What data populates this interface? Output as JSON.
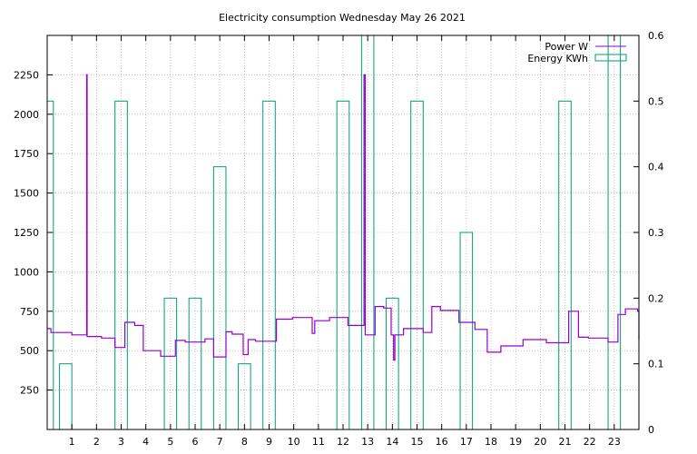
{
  "chart_data": {
    "type": "line",
    "title": "Electricity consumption Wednesday May 26 2021",
    "legend_position": "top-right",
    "grid": true,
    "x_ticks": [
      "1",
      "2",
      "3",
      "4",
      "5",
      "6",
      "7",
      "8",
      "9",
      "10",
      "11",
      "12",
      "13",
      "14",
      "15",
      "16",
      "17",
      "18",
      "19",
      "20",
      "21",
      "22",
      "23"
    ],
    "xlim": [
      0,
      24
    ],
    "y_left": {
      "lim": [
        0,
        2500
      ],
      "ticks": [
        "250",
        "500",
        "750",
        "1000",
        "1250",
        "1500",
        "1750",
        "2000",
        "2250"
      ]
    },
    "y_right": {
      "lim": [
        0,
        0.6
      ],
      "ticks": [
        "0",
        "0.1",
        "0.2",
        "0.3",
        "0.4",
        "0.5",
        "0.6"
      ]
    },
    "series": [
      {
        "name": "Power W",
        "kind": "step-line",
        "axis": "left",
        "color": "#9400d3",
        "points": [
          [
            0.0,
            640
          ],
          [
            0.15,
            615
          ],
          [
            1.0,
            600
          ],
          [
            1.55,
            600
          ],
          [
            1.6,
            2250
          ],
          [
            1.62,
            590
          ],
          [
            2.2,
            580
          ],
          [
            2.75,
            520
          ],
          [
            3.15,
            680
          ],
          [
            3.55,
            660
          ],
          [
            3.9,
            500
          ],
          [
            4.4,
            500
          ],
          [
            4.6,
            465
          ],
          [
            5.2,
            565
          ],
          [
            5.6,
            555
          ],
          [
            6.4,
            575
          ],
          [
            6.75,
            460
          ],
          [
            7.25,
            620
          ],
          [
            7.5,
            605
          ],
          [
            7.95,
            475
          ],
          [
            8.15,
            570
          ],
          [
            8.45,
            560
          ],
          [
            9.3,
            700
          ],
          [
            9.95,
            710
          ],
          [
            10.75,
            610
          ],
          [
            10.85,
            690
          ],
          [
            11.45,
            710
          ],
          [
            12.2,
            660
          ],
          [
            12.85,
            2250
          ],
          [
            12.9,
            600
          ],
          [
            13.3,
            780
          ],
          [
            13.65,
            770
          ],
          [
            13.95,
            600
          ],
          [
            14.05,
            440
          ],
          [
            14.1,
            600
          ],
          [
            14.45,
            640
          ],
          [
            15.25,
            615
          ],
          [
            15.6,
            780
          ],
          [
            15.95,
            755
          ],
          [
            16.7,
            680
          ],
          [
            17.35,
            635
          ],
          [
            17.85,
            490
          ],
          [
            18.4,
            530
          ],
          [
            19.3,
            570
          ],
          [
            20.25,
            550
          ],
          [
            21.15,
            750
          ],
          [
            21.55,
            585
          ],
          [
            21.95,
            580
          ],
          [
            22.75,
            555
          ],
          [
            23.15,
            730
          ],
          [
            23.45,
            765
          ],
          [
            23.95,
            750
          ],
          [
            24.0,
            570
          ]
        ]
      },
      {
        "name": "Energy KWh",
        "kind": "boxes",
        "axis": "right",
        "color": "#009e73",
        "bars": [
          {
            "x": 0.0,
            "value": 0.5
          },
          {
            "x": 0.75,
            "value": 0.1
          },
          {
            "x": 3.0,
            "value": 0.5
          },
          {
            "x": 5.0,
            "value": 0.2
          },
          {
            "x": 6.0,
            "value": 0.2
          },
          {
            "x": 7.0,
            "value": 0.4
          },
          {
            "x": 8.0,
            "value": 0.1
          },
          {
            "x": 9.0,
            "value": 0.5
          },
          {
            "x": 12.0,
            "value": 0.5
          },
          {
            "x": 13.0,
            "value": 0.6
          },
          {
            "x": 14.0,
            "value": 0.2
          },
          {
            "x": 15.0,
            "value": 0.5
          },
          {
            "x": 17.0,
            "value": 0.3
          },
          {
            "x": 21.0,
            "value": 0.5
          },
          {
            "x": 23.0,
            "value": 0.6
          }
        ]
      }
    ]
  }
}
